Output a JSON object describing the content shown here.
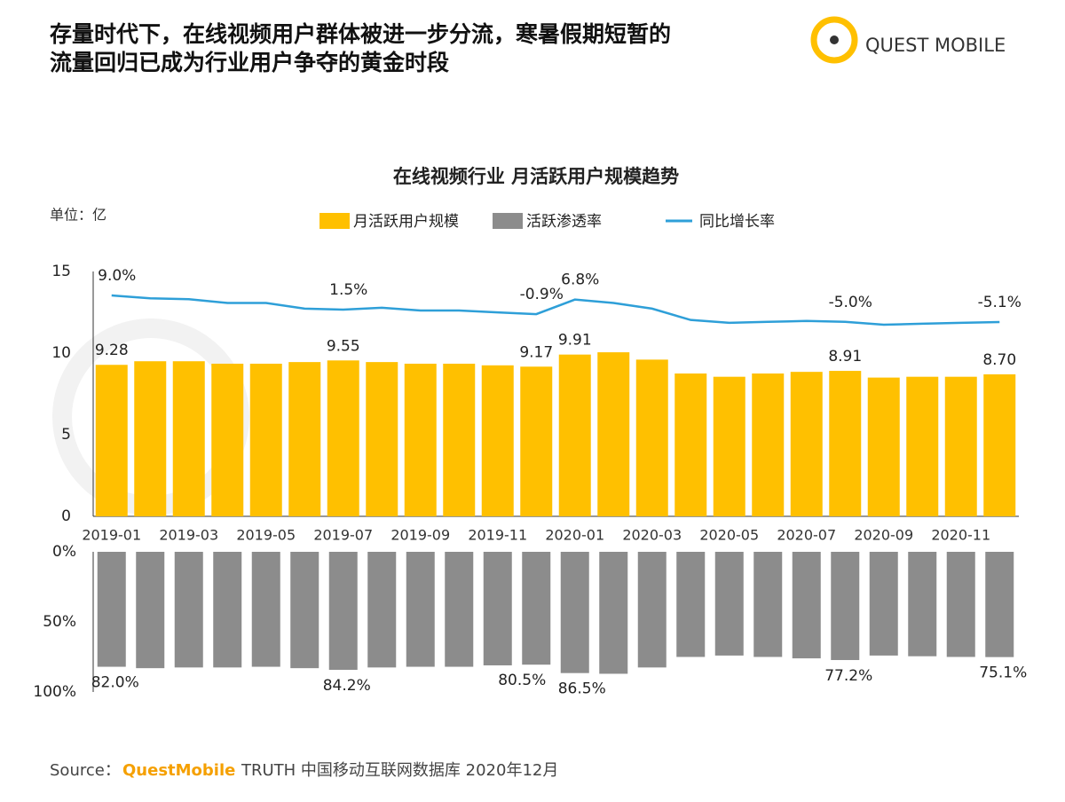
{
  "header": {
    "title_line1": "存量时代下，在线视频用户群体被进一步分流，寒暑假期短暂的",
    "title_line2": "流量回归已成为行业用户争夺的黄金时段",
    "logo": "QUEST MOBILE"
  },
  "chart_data": {
    "type": "bar",
    "title": "在线视频行业 月活跃用户规模趋势",
    "unit_label": "单位：亿",
    "categories": [
      "2019-01",
      null,
      "2019-03",
      null,
      "2019-05",
      null,
      "2019-07",
      null,
      "2019-09",
      null,
      "2019-11",
      null,
      "2020-01",
      null,
      "2020-03",
      null,
      "2020-05",
      null,
      "2020-07",
      null,
      "2020-09",
      null,
      "2020-11",
      null
    ],
    "ylim": [
      0,
      15
    ],
    "yticks": [
      0,
      5,
      10,
      15
    ],
    "y2lim": [
      0,
      100
    ],
    "y2_reversed": true,
    "y2ticks": [
      {
        "value": 0,
        "label": "0%"
      },
      {
        "value": 50,
        "label": "50%"
      },
      {
        "value": 100,
        "label": "100%"
      }
    ],
    "legend": "top",
    "series": [
      {
        "name": "月活跃用户规模",
        "color": "#ffc000",
        "values": [
          9.28,
          9.5,
          9.5,
          9.35,
          9.35,
          9.45,
          9.55,
          9.45,
          9.35,
          9.35,
          9.25,
          9.17,
          9.91,
          10.05,
          9.6,
          8.75,
          8.55,
          8.75,
          8.85,
          8.91,
          8.5,
          8.55,
          8.55,
          8.7
        ],
        "value_labels": [
          "9.28",
          null,
          null,
          null,
          null,
          null,
          "9.55",
          null,
          null,
          null,
          null,
          "9.17",
          "9.91",
          null,
          null,
          null,
          null,
          null,
          null,
          "8.91",
          null,
          null,
          null,
          "8.70"
        ]
      },
      {
        "name": "活跃渗透率",
        "color": "#8c8c8c",
        "axis": "y2",
        "values": [
          82.0,
          83,
          82.5,
          82.5,
          82,
          83,
          84.2,
          82.5,
          82,
          82,
          81,
          80.5,
          86.5,
          87,
          82.5,
          75,
          74,
          75,
          76,
          77.2,
          74,
          74.5,
          75,
          75.1
        ],
        "value_labels": [
          "82.0%",
          null,
          null,
          null,
          null,
          null,
          "84.2%",
          null,
          null,
          null,
          null,
          "80.5%",
          "86.5%",
          null,
          null,
          null,
          null,
          null,
          null,
          "77.2%",
          null,
          null,
          null,
          "75.1%"
        ]
      },
      {
        "name": "同比增长率",
        "color": "#2e9fd8",
        "type": "line",
        "values": [
          9.0,
          7.5,
          7,
          5,
          5,
          2,
          1.5,
          2.5,
          1,
          1,
          0,
          -0.9,
          6.8,
          5,
          2,
          -4,
          -5.5,
          -5,
          -4.5,
          -5.0,
          -6.5,
          -6,
          -5.5,
          -5.1
        ],
        "value_labels": [
          "9.0%",
          null,
          null,
          null,
          null,
          null,
          "1.5%",
          null,
          null,
          null,
          null,
          "-0.9%",
          "6.8%",
          null,
          null,
          null,
          null,
          null,
          null,
          "-5.0%",
          null,
          null,
          null,
          "-5.1%"
        ]
      }
    ]
  },
  "footer": {
    "source_prefix": "Source：",
    "source_brand": "QuestMobile",
    "source_text": "TRUTH 中国移动互联网数据库 2020年12月"
  }
}
